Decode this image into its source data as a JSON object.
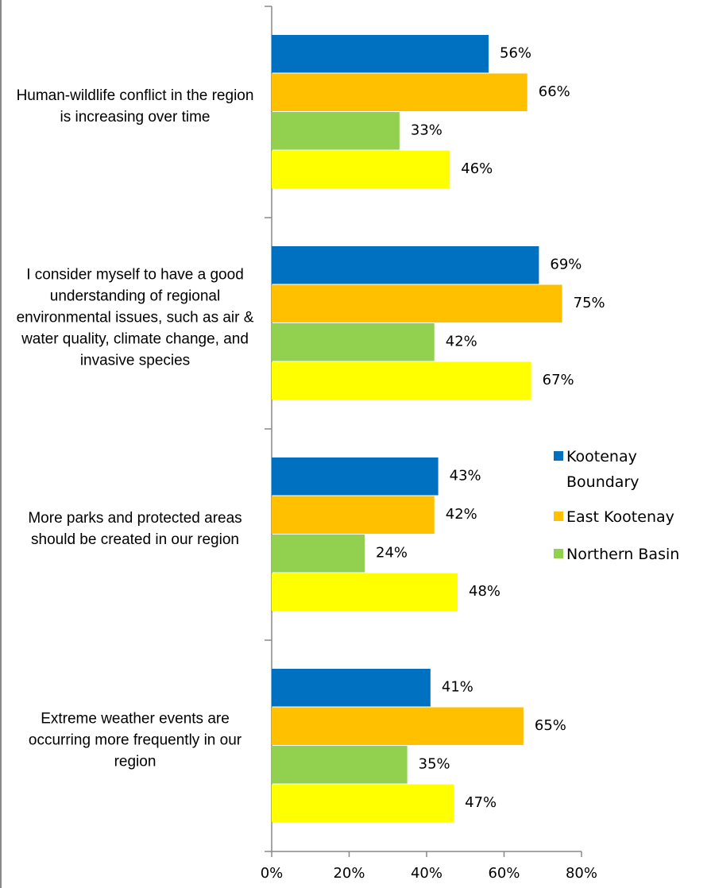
{
  "chart_data": {
    "type": "hbar",
    "categories": [
      "Human-wildlife conflict in the region is increasing over time",
      "I consider myself to have a good understanding of regional environmental issues, such as air & water quality, climate change, and invasive species",
      "More parks and protected areas should be created in our region",
      "Extreme weather events are occurring more frequently in our region"
    ],
    "series": [
      {
        "name": "Kootenay Boundary",
        "color": "#0070c0",
        "values": [
          56,
          69,
          43,
          41
        ],
        "value_labels": [
          "56%",
          "69%",
          "43%",
          "41%"
        ]
      },
      {
        "name": "East Kootenay",
        "color": "#ffc000",
        "values": [
          66,
          75,
          42,
          65
        ],
        "value_labels": [
          "66%",
          "75%",
          "42%",
          "65%"
        ]
      },
      {
        "name": "Northern Basin",
        "color": "#92d050",
        "values": [
          33,
          42,
          24,
          35
        ],
        "value_labels": [
          "33%",
          "42%",
          "24%",
          "35%"
        ]
      },
      {
        "color": "#ffff00",
        "values": [
          46,
          67,
          48,
          47
        ],
        "value_labels": [
          "46%",
          "67%",
          "48%",
          "47%"
        ]
      }
    ],
    "xlim": [
      0,
      80
    ],
    "xticks": [
      {
        "value": 0,
        "label": "0%"
      },
      {
        "value": 20,
        "label": "20%"
      },
      {
        "value": 40,
        "label": "40%"
      },
      {
        "value": 60,
        "label": "60%"
      },
      {
        "value": 80,
        "label": "80%"
      }
    ],
    "legend": "right"
  }
}
